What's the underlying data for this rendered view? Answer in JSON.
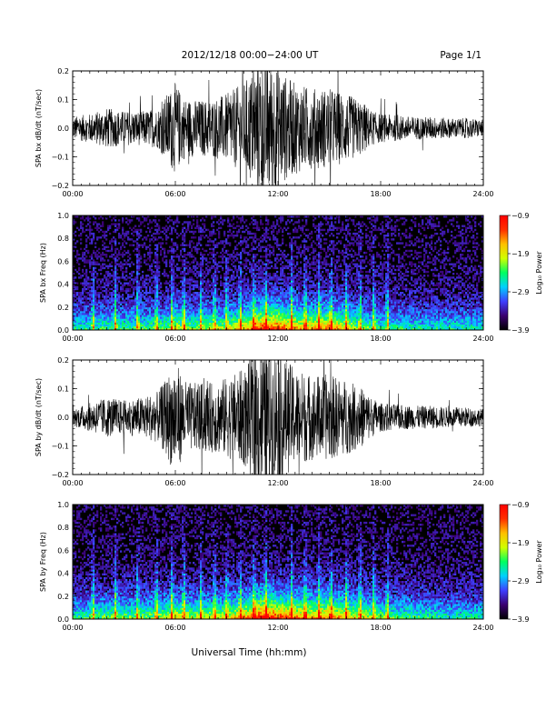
{
  "header": {
    "title": "2012/12/18  00:00−24:00 UT",
    "page": "Page 1/1"
  },
  "x_axis_title": "Universal Time (hh:mm)",
  "chart_data": [
    {
      "type": "line",
      "ylabel": "SPA bx dB/dt (nT/sec)",
      "ylim": [
        -0.2,
        0.2
      ],
      "yticks": [
        "−0.2",
        "−0.1",
        "0.0",
        "0.1",
        "0.2"
      ],
      "xticks": [
        "00:00",
        "06:00",
        "12:00",
        "18:00",
        "24:00"
      ],
      "xlim_hours": [
        0,
        24
      ],
      "envelope": {
        "x_hours": [
          0,
          1,
          2,
          3,
          4,
          5,
          5.5,
          6,
          6.5,
          7,
          8,
          9,
          10,
          10.5,
          11,
          11.5,
          12,
          12.5,
          13,
          14,
          15,
          16,
          17,
          17.5,
          18,
          19,
          20,
          21,
          22,
          23,
          24
        ],
        "amplitude": [
          0.04,
          0.05,
          0.07,
          0.06,
          0.06,
          0.07,
          0.12,
          0.16,
          0.11,
          0.1,
          0.1,
          0.12,
          0.16,
          0.2,
          0.25,
          0.25,
          0.22,
          0.18,
          0.16,
          0.14,
          0.14,
          0.12,
          0.09,
          0.06,
          0.05,
          0.045,
          0.04,
          0.04,
          0.035,
          0.035,
          0.03
        ]
      }
    },
    {
      "type": "heatmap",
      "ylabel": "SPA bx Freq (Hz)",
      "ylim": [
        0.0,
        1.0
      ],
      "yticks": [
        "0.0",
        "0.2",
        "0.4",
        "0.6",
        "0.8",
        "1.0"
      ],
      "xticks": [
        "00:00",
        "06:00",
        "12:00",
        "18:00",
        "24:00"
      ],
      "xlim_hours": [
        0,
        24
      ],
      "colorbar": {
        "label": "Log₁₀ Power",
        "range": [
          -3.9,
          -0.9
        ],
        "ticks": [
          "−0.9",
          "−1.9",
          "−2.9",
          "−3.9"
        ],
        "colors": [
          "#000000",
          "#3a0070",
          "#3f3fff",
          "#00d0ff",
          "#00ff60",
          "#d0ff00",
          "#ffc000",
          "#ff3000",
          "#ff0000"
        ]
      },
      "activity": {
        "x_hours": [
          0,
          2,
          4,
          5.5,
          6,
          7,
          9,
          10,
          11,
          12,
          13,
          14,
          15,
          16,
          17,
          18,
          20,
          22,
          24
        ],
        "level": [
          0.35,
          0.4,
          0.4,
          0.45,
          0.55,
          0.45,
          0.5,
          0.6,
          0.8,
          0.8,
          0.65,
          0.65,
          0.7,
          0.55,
          0.45,
          0.4,
          0.35,
          0.35,
          0.35
        ]
      }
    },
    {
      "type": "line",
      "ylabel": "SPA by dB/dt (nT/sec)",
      "ylim": [
        -0.2,
        0.2
      ],
      "yticks": [
        "−0.2",
        "−0.1",
        "0.0",
        "0.1",
        "0.2"
      ],
      "xticks": [
        "00:00",
        "06:00",
        "12:00",
        "18:00",
        "24:00"
      ],
      "xlim_hours": [
        0,
        24
      ],
      "envelope": {
        "x_hours": [
          0,
          1,
          2,
          3,
          4,
          5,
          5.5,
          6,
          6.5,
          7,
          8,
          9,
          10,
          10.5,
          11,
          11.5,
          12,
          12.5,
          13,
          14,
          15,
          16,
          17,
          17.5,
          18,
          19,
          20,
          21,
          22,
          23,
          24
        ],
        "amplitude": [
          0.03,
          0.05,
          0.07,
          0.06,
          0.07,
          0.09,
          0.14,
          0.2,
          0.13,
          0.12,
          0.12,
          0.14,
          0.17,
          0.22,
          0.26,
          0.26,
          0.24,
          0.2,
          0.17,
          0.15,
          0.15,
          0.13,
          0.1,
          0.07,
          0.05,
          0.045,
          0.04,
          0.04,
          0.035,
          0.035,
          0.03
        ]
      }
    },
    {
      "type": "heatmap",
      "ylabel": "SPA by Freq (Hz)",
      "ylim": [
        0.0,
        1.0
      ],
      "yticks": [
        "0.0",
        "0.2",
        "0.4",
        "0.6",
        "0.8",
        "1.0"
      ],
      "xticks": [
        "00:00",
        "06:00",
        "12:00",
        "18:00",
        "24:00"
      ],
      "xlim_hours": [
        0,
        24
      ],
      "colorbar": {
        "label": "Log₁₀ Power",
        "range": [
          -3.9,
          -0.9
        ],
        "ticks": [
          "−0.9",
          "−1.9",
          "−2.9",
          "−3.9"
        ],
        "colors": [
          "#000000",
          "#3a0070",
          "#3f3fff",
          "#00d0ff",
          "#00ff60",
          "#d0ff00",
          "#ffc000",
          "#ff3000",
          "#ff0000"
        ]
      },
      "activity": {
        "x_hours": [
          0,
          2,
          4,
          5.5,
          6,
          7,
          9,
          10,
          11,
          12,
          13,
          14,
          15,
          16,
          17,
          18,
          20,
          22,
          24
        ],
        "level": [
          0.35,
          0.45,
          0.45,
          0.5,
          0.6,
          0.5,
          0.55,
          0.65,
          0.85,
          0.8,
          0.7,
          0.65,
          0.7,
          0.6,
          0.55,
          0.45,
          0.4,
          0.35,
          0.35
        ]
      }
    }
  ]
}
